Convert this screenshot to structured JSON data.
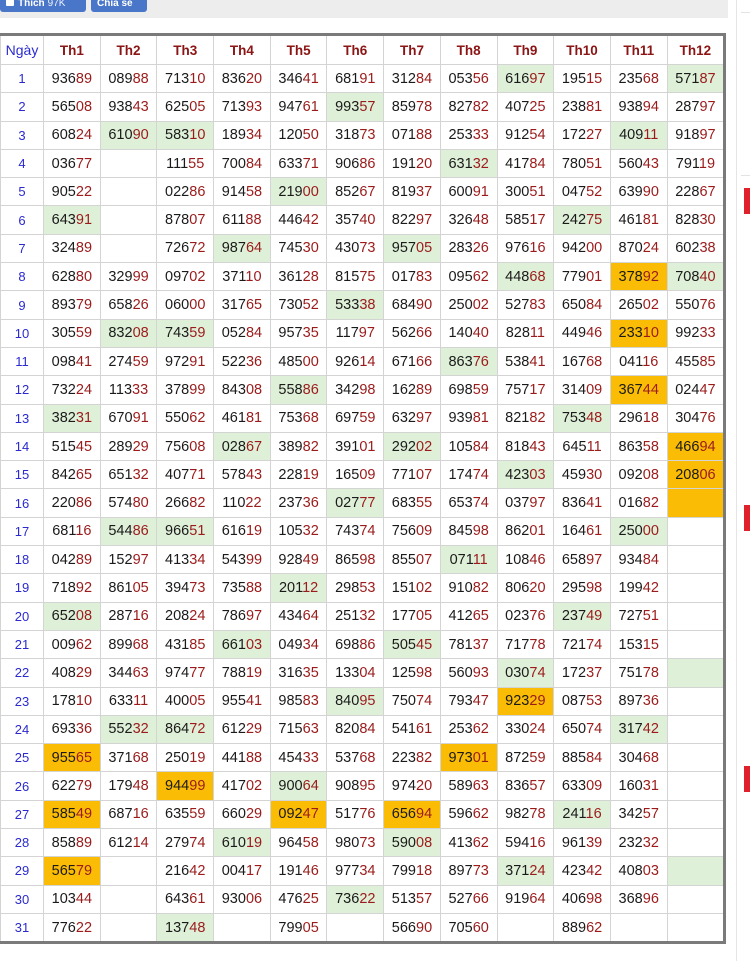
{
  "social": {
    "like_label": "Thích",
    "like_count": "97K",
    "share_label": "Chia sẻ"
  },
  "colors": {
    "green_highlight": "#dff0d8",
    "orange_highlight": "#fbbc05",
    "tail_digits": "#9b1b1b",
    "day_number": "#2a2ad0"
  },
  "table": {
    "headers": [
      "Ngày",
      "Th1",
      "Th2",
      "Th3",
      "Th4",
      "Th5",
      "Th6",
      "Th7",
      "Th8",
      "Th9",
      "Th10",
      "Th11",
      "Th12"
    ],
    "highlight_legend": {
      "g": "green",
      "o": "orange",
      "-": "none"
    },
    "rows": [
      {
        "day": "1",
        "cells": [
          "93689",
          "08988",
          "71310",
          "83620",
          "34641",
          "68191",
          "31284",
          "05356",
          "61697",
          "19515",
          "23568",
          "57187"
        ],
        "hl": "--------g--g"
      },
      {
        "day": "2",
        "cells": [
          "56508",
          "93843",
          "62505",
          "71393",
          "94761",
          "99357",
          "85978",
          "82782",
          "40725",
          "23881",
          "93894",
          "28797"
        ],
        "hl": "-----g------"
      },
      {
        "day": "3",
        "cells": [
          "60824",
          "61090",
          "58310",
          "18934",
          "12050",
          "31873",
          "07188",
          "25333",
          "91254",
          "17227",
          "40911",
          "91897"
        ],
        "hl": "-gg-------g-"
      },
      {
        "day": "4",
        "cells": [
          "03677",
          "",
          "11155",
          "70084",
          "63371",
          "90686",
          "19120",
          "63132",
          "41784",
          "78051",
          "56043",
          "79119"
        ],
        "hl": "-------g----"
      },
      {
        "day": "5",
        "cells": [
          "90522",
          "",
          "02286",
          "91458",
          "21900",
          "85267",
          "81937",
          "60091",
          "30051",
          "04752",
          "63990",
          "22867"
        ],
        "hl": "----g-------"
      },
      {
        "day": "6",
        "cells": [
          "64391",
          "",
          "87807",
          "61188",
          "44642",
          "35740",
          "82297",
          "32648",
          "58517",
          "24275",
          "46181",
          "82830"
        ],
        "hl": "g--------g--"
      },
      {
        "day": "7",
        "cells": [
          "32489",
          "",
          "72672",
          "98764",
          "74530",
          "43073",
          "95705",
          "28326",
          "97616",
          "94200",
          "87024",
          "60238"
        ],
        "hl": "---g--g-----"
      },
      {
        "day": "8",
        "cells": [
          "62880",
          "32999",
          "09702",
          "37110",
          "36128",
          "81575",
          "01783",
          "09562",
          "44868",
          "77901",
          "37892",
          "70840"
        ],
        "hl": "--------g-og"
      },
      {
        "day": "9",
        "cells": [
          "89379",
          "65826",
          "06000",
          "31765",
          "73052",
          "53338",
          "68490",
          "25002",
          "52783",
          "65084",
          "26502",
          "55076"
        ],
        "hl": "-----g------"
      },
      {
        "day": "10",
        "cells": [
          "30559",
          "83208",
          "74359",
          "05284",
          "95735",
          "11797",
          "56266",
          "14040",
          "82811",
          "44946",
          "23310",
          "99233"
        ],
        "hl": "-gg-------o-"
      },
      {
        "day": "11",
        "cells": [
          "09841",
          "27459",
          "97291",
          "52236",
          "48500",
          "92614",
          "67166",
          "86376",
          "53841",
          "16768",
          "04116",
          "45585"
        ],
        "hl": "-------g----"
      },
      {
        "day": "12",
        "cells": [
          "73224",
          "11333",
          "37899",
          "84308",
          "55886",
          "34298",
          "16289",
          "69859",
          "75717",
          "31409",
          "36744",
          "02447"
        ],
        "hl": "----g-----o-"
      },
      {
        "day": "13",
        "cells": [
          "38231",
          "67091",
          "55062",
          "46181",
          "75368",
          "69759",
          "63297",
          "93981",
          "82182",
          "75348",
          "29618",
          "30476"
        ],
        "hl": "g--------g--"
      },
      {
        "day": "14",
        "cells": [
          "51545",
          "28929",
          "75608",
          "02867",
          "38982",
          "39101",
          "29202",
          "10584",
          "81843",
          "64511",
          "86358",
          "46694"
        ],
        "hl": "---g--g----o"
      },
      {
        "day": "15",
        "cells": [
          "84265",
          "65132",
          "40771",
          "57843",
          "22819",
          "16509",
          "77107",
          "17474",
          "42303",
          "45930",
          "09208",
          "20806"
        ],
        "hl": "--------g--o"
      },
      {
        "day": "16",
        "cells": [
          "22086",
          "57480",
          "26682",
          "11022",
          "23736",
          "02777",
          "68355",
          "65374",
          "03797",
          "83641",
          "01682",
          ""
        ],
        "hl": "-----g-----o"
      },
      {
        "day": "17",
        "cells": [
          "68116",
          "54486",
          "96651",
          "61619",
          "10532",
          "74374",
          "75609",
          "84598",
          "86201",
          "16461",
          "25000",
          ""
        ],
        "hl": "-gg-------g-"
      },
      {
        "day": "18",
        "cells": [
          "04289",
          "15297",
          "41334",
          "54399",
          "92849",
          "86598",
          "85507",
          "07111",
          "10846",
          "65897",
          "93484",
          ""
        ],
        "hl": "-------g----"
      },
      {
        "day": "19",
        "cells": [
          "71892",
          "86105",
          "39473",
          "73588",
          "20112",
          "29853",
          "15102",
          "91082",
          "80620",
          "29598",
          "19942",
          ""
        ],
        "hl": "----g-------"
      },
      {
        "day": "20",
        "cells": [
          "65208",
          "28716",
          "20824",
          "78697",
          "43464",
          "25132",
          "17705",
          "41265",
          "02376",
          "23749",
          "72751",
          ""
        ],
        "hl": "g--------g--"
      },
      {
        "day": "21",
        "cells": [
          "00962",
          "89968",
          "43185",
          "66103",
          "04934",
          "69886",
          "50545",
          "78137",
          "71778",
          "72174",
          "15315",
          ""
        ],
        "hl": "---g--g-----"
      },
      {
        "day": "22",
        "cells": [
          "40829",
          "34463",
          "97477",
          "78819",
          "31635",
          "13304",
          "12598",
          "56093",
          "03074",
          "17237",
          "75178",
          ""
        ],
        "hl": "--------g--g"
      },
      {
        "day": "23",
        "cells": [
          "17810",
          "63311",
          "40005",
          "95541",
          "98583",
          "84095",
          "75074",
          "79347",
          "92329",
          "08753",
          "89736",
          ""
        ],
        "hl": "-----g--o---"
      },
      {
        "day": "24",
        "cells": [
          "69336",
          "55232",
          "86472",
          "61229",
          "71563",
          "82084",
          "54161",
          "25362",
          "33024",
          "65074",
          "31742",
          ""
        ],
        "hl": "-gg-------g-"
      },
      {
        "day": "25",
        "cells": [
          "95565",
          "37168",
          "25019",
          "44188",
          "45433",
          "53768",
          "22382",
          "97301",
          "87259",
          "88584",
          "30468",
          ""
        ],
        "hl": "o------o----"
      },
      {
        "day": "26",
        "cells": [
          "62279",
          "17948",
          "94499",
          "41702",
          "90064",
          "90895",
          "97420",
          "58963",
          "83657",
          "63309",
          "16031",
          ""
        ],
        "hl": "--o-g-------"
      },
      {
        "day": "27",
        "cells": [
          "58549",
          "68716",
          "63559",
          "66029",
          "09247",
          "51776",
          "65694",
          "59662",
          "98278",
          "24116",
          "34257",
          ""
        ],
        "hl": "o---o-o--g--"
      },
      {
        "day": "28",
        "cells": [
          "85889",
          "61214",
          "27974",
          "61019",
          "96458",
          "98073",
          "59008",
          "41362",
          "59416",
          "96139",
          "23232",
          ""
        ],
        "hl": "---g--g-----"
      },
      {
        "day": "29",
        "cells": [
          "56579",
          "",
          "21642",
          "00417",
          "19146",
          "97734",
          "79918",
          "89773",
          "37124",
          "42342",
          "40803",
          ""
        ],
        "hl": "o-------g--g"
      },
      {
        "day": "30",
        "cells": [
          "10344",
          "",
          "64361",
          "93006",
          "47625",
          "73622",
          "51357",
          "52766",
          "91964",
          "40698",
          "36896",
          ""
        ],
        "hl": "-----g------"
      },
      {
        "day": "31",
        "cells": [
          "77622",
          "",
          "13748",
          "",
          "79905",
          "",
          "56690",
          "70560",
          "",
          "88962",
          "",
          ""
        ],
        "hl": "--g---------"
      }
    ]
  }
}
